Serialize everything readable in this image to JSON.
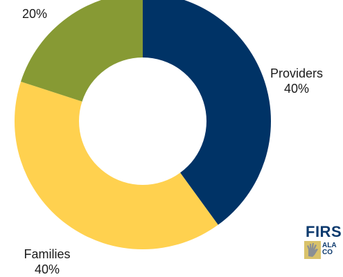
{
  "chart_data": {
    "type": "pie",
    "style": "donut",
    "slices": [
      {
        "label": "Providers",
        "pct_label": "40%",
        "value": 40,
        "color": "#003366"
      },
      {
        "label": "Families",
        "pct_label": "40%",
        "value": 40,
        "color": "#FFD14F"
      },
      {
        "label": "",
        "pct_label": "20%",
        "value": 20,
        "color": "#879A34"
      }
    ],
    "start_angle_deg": 0,
    "direction": "clockwise",
    "legend": "none"
  },
  "logo": {
    "word": "FIRS",
    "sub_line1": "ALA",
    "sub_line2": "CO"
  }
}
